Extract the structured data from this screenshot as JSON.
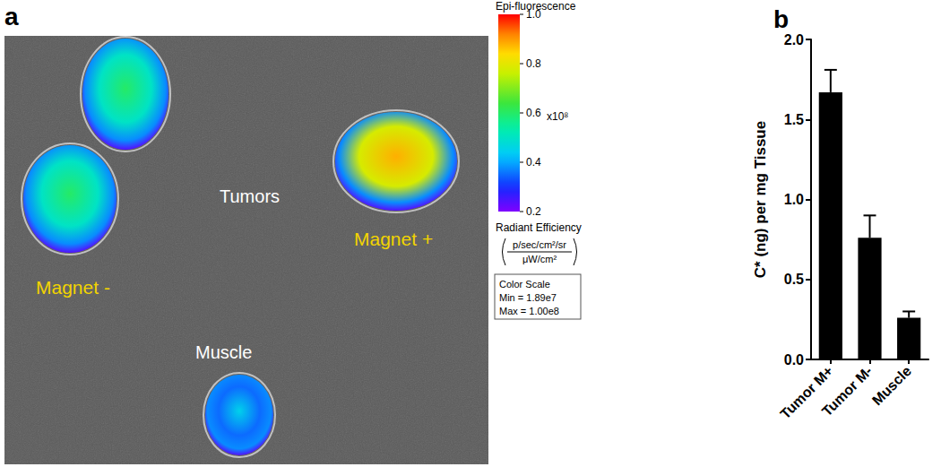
{
  "panel_a": {
    "label": "a",
    "image_labels": {
      "tumors": "Tumors"
    },
    "regions": [
      {
        "label": "Magnet -",
        "intensity": 0.6
      },
      {
        "label": "Magnet +",
        "intensity": 0.88
      },
      {
        "label": "Muscle",
        "intensity": 0.45
      }
    ],
    "colorbar": {
      "title": "Epi-fluorescence",
      "range": [
        0.2,
        1.0
      ],
      "ticks": [
        0.2,
        0.4,
        0.6,
        0.8,
        {
          "value": 1,
          "label": "1.0"
        }
      ],
      "multiplier": "x10⁸",
      "quantity": "Radiant Efficiency",
      "units_numerator": "p/sec/cm²/sr",
      "units_denominator": "μW/cm²",
      "scale_box": [
        "Color Scale",
        "Min = 1.89e7",
        "Max = 1.00e8"
      ]
    }
  },
  "chart_data": {
    "type": "bar",
    "title": "b",
    "categories": [
      "Tumor M+",
      "Tumor M-",
      "Muscle"
    ],
    "values": [
      1.67,
      0.76,
      0.26
    ],
    "errors": [
      0.14,
      0.14,
      0.04
    ],
    "color": "#000000",
    "y_label": "C* (ng) per mg Tissue",
    "ylim": [
      0,
      2
    ],
    "yticks": [
      {
        "value": 0,
        "label": "0.0"
      },
      0.5,
      {
        "value": 1,
        "label": "1.0"
      },
      1.5,
      {
        "value": 2,
        "label": "2.0"
      }
    ],
    "grid": false
  }
}
